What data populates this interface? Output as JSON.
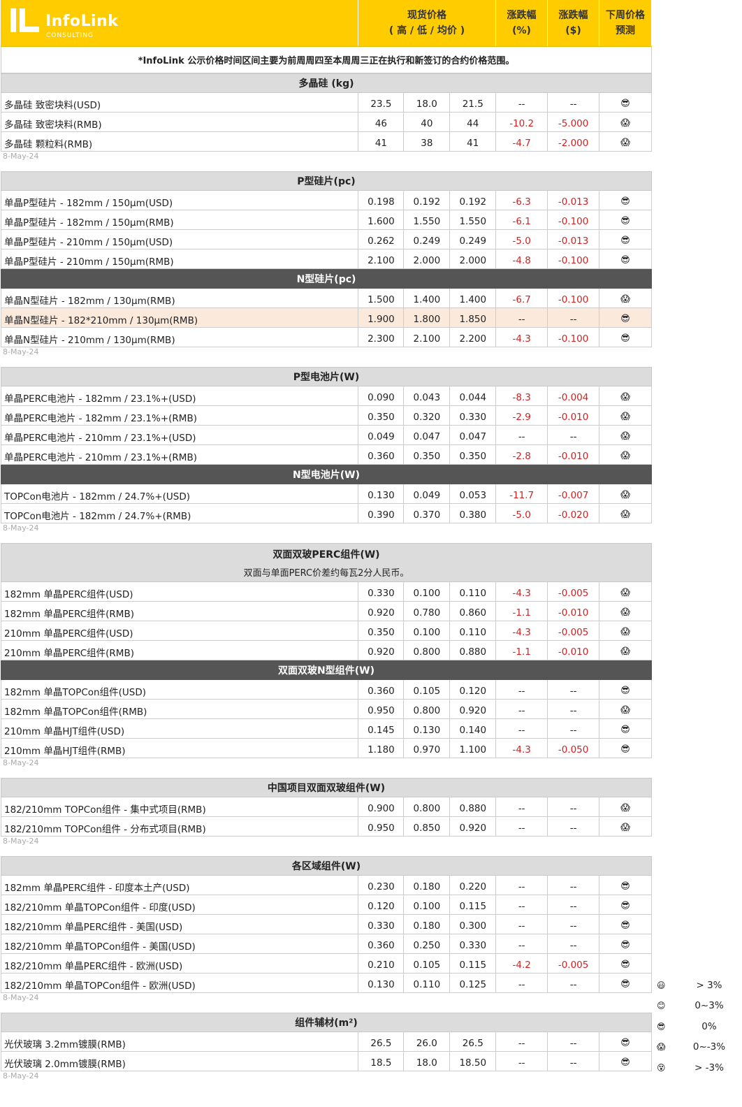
{
  "header": {
    "logo": "InfoLink",
    "logo_sub": "CONSULTING",
    "columns": [
      [
        "现货价格",
        "( 高 / 低 / 均价 )"
      ],
      [
        "涨跌幅",
        "(%)"
      ],
      [
        "涨跌幅",
        "($)"
      ],
      [
        "下周价格",
        "预测"
      ]
    ]
  },
  "note": "*InfoLink 公示价格时间区间主要为前周周四至本周周三正在执行和新签订的合约价格范围。",
  "sections": [
    {
      "title": "多晶硅 (kg)",
      "rows": [
        {
          "cells": [
            "多晶硅 致密块料(USD)",
            "23.5",
            "18.0",
            "21.5",
            "--",
            "--",
            "😎"
          ]
        },
        {
          "cells": [
            "多晶硅 致密块料(RMB)",
            "46",
            "40",
            "44",
            "-10.2",
            "-5.000",
            "😱"
          ]
        },
        {
          "cells": [
            "多晶硅 颗粒料(RMB)",
            "41",
            "38",
            "41",
            "-4.7",
            "-2.000",
            "😱"
          ]
        }
      ],
      "date": "8-May-24"
    },
    {
      "title": "P型硅片(pc)",
      "rows": [
        {
          "cells": [
            "单晶P型硅片 - 182mm / 150μm(USD)",
            "0.198",
            "0.192",
            "0.192",
            "-6.3",
            "-0.013",
            "😎"
          ]
        },
        {
          "cells": [
            "单晶P型硅片 - 182mm / 150μm(RMB)",
            "1.600",
            "1.550",
            "1.550",
            "-6.1",
            "-0.100",
            "😎"
          ]
        },
        {
          "cells": [
            "单晶P型硅片 - 210mm / 150μm(USD)",
            "0.262",
            "0.249",
            "0.249",
            "-5.0",
            "-0.013",
            "😎"
          ]
        },
        {
          "cells": [
            "单晶P型硅片 - 210mm / 150μm(RMB)",
            "2.100",
            "2.000",
            "2.000",
            "-4.8",
            "-0.100",
            "😎"
          ]
        }
      ],
      "subsections": [
        {
          "title": "N型硅片(pc)",
          "rows": [
            {
              "cells": [
                "单晶N型硅片 - 182mm / 130μm(RMB)",
                "1.500",
                "1.400",
                "1.400",
                "-6.7",
                "-0.100",
                "😱"
              ]
            },
            {
              "cells": [
                "单晶N型硅片 - 182*210mm / 130μm(RMB)",
                "1.900",
                "1.800",
                "1.850",
                "--",
                "--",
                "😎"
              ],
              "highlight": true
            },
            {
              "cells": [
                "单晶N型硅片 - 210mm / 130μm(RMB)",
                "2.300",
                "2.100",
                "2.200",
                "-4.3",
                "-0.100",
                "😎"
              ]
            }
          ]
        }
      ],
      "date": "8-May-24"
    },
    {
      "title": "P型电池片(W)",
      "rows": [
        {
          "cells": [
            "单晶PERC电池片 - 182mm / 23.1%+(USD)",
            "0.090",
            "0.043",
            "0.044",
            "-8.3",
            "-0.004",
            "😱"
          ]
        },
        {
          "cells": [
            "单晶PERC电池片 - 182mm / 23.1%+(RMB)",
            "0.350",
            "0.320",
            "0.330",
            "-2.9",
            "-0.010",
            "😱"
          ]
        },
        {
          "cells": [
            "单晶PERC电池片 - 210mm / 23.1%+(USD)",
            "0.049",
            "0.047",
            "0.047",
            "--",
            "--",
            "😱"
          ]
        },
        {
          "cells": [
            "单晶PERC电池片 - 210mm / 23.1%+(RMB)",
            "0.360",
            "0.350",
            "0.350",
            "-2.8",
            "-0.010",
            "😱"
          ]
        }
      ],
      "subsections": [
        {
          "title": "N型电池片(W)",
          "rows": [
            {
              "cells": [
                "TOPCon电池片 - 182mm / 24.7%+(USD)",
                "0.130",
                "0.049",
                "0.053",
                "-11.7",
                "-0.007",
                "😱"
              ]
            },
            {
              "cells": [
                "TOPCon电池片 - 182mm / 24.7%+(RMB)",
                "0.390",
                "0.370",
                "0.380",
                "-5.0",
                "-0.020",
                "😱"
              ]
            }
          ]
        }
      ],
      "date": "8-May-24"
    },
    {
      "title": "双面双玻PERC组件(W)",
      "note": "双面与单面PERC价差约每瓦2分人民币。",
      "rows": [
        {
          "cells": [
            "182mm 单晶PERC组件(USD)",
            "0.330",
            "0.100",
            "0.110",
            "-4.3",
            "-0.005",
            "😱"
          ]
        },
        {
          "cells": [
            "182mm 单晶PERC组件(RMB)",
            "0.920",
            "0.780",
            "0.860",
            "-1.1",
            "-0.010",
            "😱"
          ]
        },
        {
          "cells": [
            "210mm 单晶PERC组件(USD)",
            "0.350",
            "0.100",
            "0.110",
            "-4.3",
            "-0.005",
            "😱"
          ]
        },
        {
          "cells": [
            "210mm 单晶PERC组件(RMB)",
            "0.920",
            "0.800",
            "0.880",
            "-1.1",
            "-0.010",
            "😱"
          ]
        }
      ],
      "subsections": [
        {
          "title": "双面双玻N型组件(W)",
          "rows": [
            {
              "cells": [
                "182mm 单晶TOPCon组件(USD)",
                "0.360",
                "0.105",
                "0.120",
                "--",
                "--",
                "😎"
              ]
            },
            {
              "cells": [
                "182mm 单晶TOPCon组件(RMB)",
                "0.950",
                "0.800",
                "0.920",
                "--",
                "--",
                "😱"
              ]
            },
            {
              "cells": [
                "210mm 单晶HJT组件(USD)",
                "0.145",
                "0.130",
                "0.140",
                "--",
                "--",
                "😎"
              ]
            },
            {
              "cells": [
                "210mm 单晶HJT组件(RMB)",
                "1.180",
                "0.970",
                "1.100",
                "-4.3",
                "-0.050",
                "😎"
              ]
            }
          ]
        }
      ],
      "date": "8-May-24"
    },
    {
      "title": "中国项目双面双玻组件(W)",
      "rows": [
        {
          "cells": [
            "182/210mm TOPCon组件 - 集中式项目(RMB)",
            "0.900",
            "0.800",
            "0.880",
            "--",
            "--",
            "😱"
          ]
        },
        {
          "cells": [
            "182/210mm TOPCon组件 - 分布式项目(RMB)",
            "0.950",
            "0.850",
            "0.920",
            "--",
            "--",
            "😱"
          ]
        }
      ],
      "date": "8-May-24"
    },
    {
      "title": "各区域组件(W)",
      "rows": [
        {
          "cells": [
            "182mm 单晶PERC组件 - 印度本土产(USD)",
            "0.230",
            "0.180",
            "0.220",
            "--",
            "--",
            "😎"
          ]
        },
        {
          "cells": [
            "182/210mm 单晶TOPCon组件 - 印度(USD)",
            "0.120",
            "0.100",
            "0.115",
            "--",
            "--",
            "😎"
          ]
        },
        {
          "cells": [
            "182/210mm 单晶PERC组件 - 美国(USD)",
            "0.330",
            "0.180",
            "0.300",
            "--",
            "--",
            "😎"
          ]
        },
        {
          "cells": [
            "182/210mm 单晶TOPCon组件 - 美国(USD)",
            "0.360",
            "0.250",
            "0.330",
            "--",
            "--",
            "😎"
          ]
        },
        {
          "cells": [
            "182/210mm 单晶PERC组件 - 欧洲(USD)",
            "0.210",
            "0.105",
            "0.115",
            "-4.2",
            "-0.005",
            "😎"
          ]
        },
        {
          "cells": [
            "182/210mm 单晶TOPCon组件 - 欧洲(USD)",
            "0.130",
            "0.110",
            "0.125",
            "--",
            "--",
            "😎"
          ]
        }
      ],
      "date": "8-May-24"
    },
    {
      "title": "组件辅材(m²)",
      "rows": [
        {
          "cells": [
            "光伏玻璃 3.2mm镀膜(RMB)",
            "26.5",
            "26.0",
            "26.5",
            "--",
            "--",
            "😎"
          ]
        },
        {
          "cells": [
            "光伏玻璃 2.0mm镀膜(RMB)",
            "18.5",
            "18.0",
            "18.50",
            "--",
            "--",
            "😎"
          ]
        }
      ],
      "date": "8-May-24"
    }
  ],
  "legend": [
    {
      "icon": "😃",
      "label": "> 3%"
    },
    {
      "icon": "😊",
      "label": "0~3%"
    },
    {
      "icon": "😎",
      "label": "0%"
    },
    {
      "icon": "😱",
      "label": "0~-3%"
    },
    {
      "icon": "😵",
      "label": "> -3%"
    }
  ]
}
